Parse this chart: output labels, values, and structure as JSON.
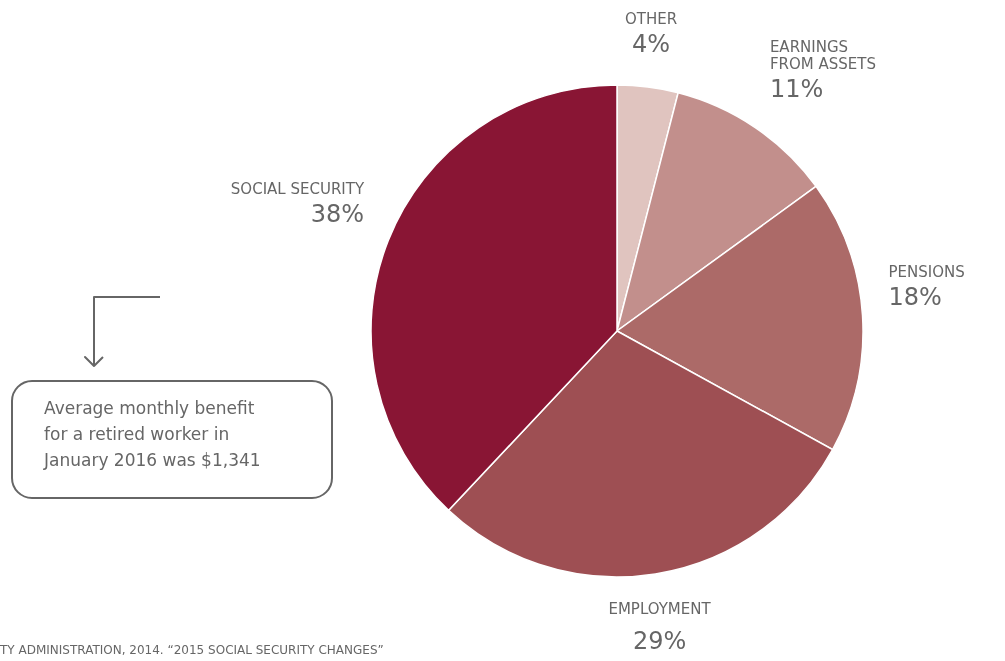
{
  "chart_data": {
    "type": "pie",
    "categories": [
      "OTHER",
      "EARNINGS\nFROM ASSETS",
      "PENSIONS",
      "EMPLOYMENT",
      "SOCIAL SECURITY"
    ],
    "values": [
      4,
      11,
      18,
      29,
      38
    ],
    "value_labels": [
      "4%",
      "11%",
      "18%",
      "29%",
      "38%"
    ],
    "colors": [
      "#e0c4bf",
      "#c28f8c",
      "#ac6a68",
      "#9e4f53",
      "#891534"
    ],
    "annotations": [
      "Average monthly benefit\nfor a retired worker in\nJanuary 2016 was $1,341",
      "TY ADMINISTRATION, 2014. “2015 SOCIAL SECURITY CHANGES”"
    ]
  }
}
